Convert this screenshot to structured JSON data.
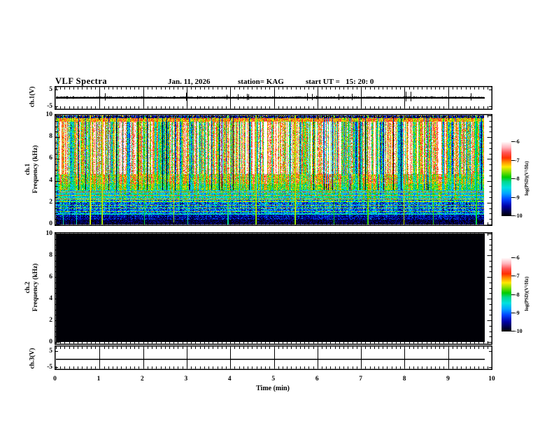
{
  "header": {
    "title": "VLF Spectra",
    "date": "Jan. 11, 2026",
    "station": "station= KAG",
    "start_ut": "start UT =   15: 20: 0"
  },
  "axes": {
    "time_label": "Time (min)",
    "x_tick_labels": [
      "0",
      "1",
      "2",
      "3",
      "4",
      "5",
      "6",
      "7",
      "8",
      "9",
      "10"
    ],
    "ch1_voltage": {
      "label": "ch.1(V)",
      "y_tick_labels": [
        "5",
        "-5"
      ]
    },
    "ch1_spectrogram": {
      "label_line1": "ch.1",
      "label_line2": "Frequency (kHz)",
      "y_tick_labels": [
        "10",
        "8",
        "6",
        "4",
        "2",
        "0"
      ]
    },
    "ch2_spectrogram": {
      "label_line1": "ch.2",
      "label_line2": "Frequency (kHz)",
      "y_tick_labels": [
        "10",
        "8",
        "6",
        "4",
        "2",
        "0"
      ]
    },
    "ch3_voltage": {
      "label": "ch.3(V)",
      "y_tick_labels": [
        "5",
        "-5"
      ]
    }
  },
  "colorbar": {
    "label": "log(PSD)(V²/Hz)",
    "tick_labels": [
      "-6",
      "-7",
      "-8",
      "-9",
      "-10"
    ],
    "value_range": [
      -10,
      -6
    ]
  },
  "colors": {
    "background": "#ffffff",
    "frame": "#000000",
    "colormap_stops": [
      [
        0.0,
        "#000006"
      ],
      [
        0.05,
        "#000042"
      ],
      [
        0.13,
        "#0000a8"
      ],
      [
        0.22,
        "#0044ff"
      ],
      [
        0.3,
        "#00a4ff"
      ],
      [
        0.38,
        "#00e0e0"
      ],
      [
        0.46,
        "#00d890"
      ],
      [
        0.52,
        "#00cc00"
      ],
      [
        0.6,
        "#96e000"
      ],
      [
        0.66,
        "#ffe800"
      ],
      [
        0.72,
        "#ff9400"
      ],
      [
        0.78,
        "#ff3000"
      ],
      [
        0.85,
        "#ff5454"
      ],
      [
        0.92,
        "#ffb4bc"
      ],
      [
        1.0,
        "#ffffff"
      ]
    ]
  },
  "chart_data": [
    {
      "id": "ch1_waveform",
      "type": "line",
      "ylabel": "ch.1(V)",
      "yticks": [
        5,
        -5
      ],
      "ylim_V": [
        -7,
        7
      ],
      "x_range_min": [
        0,
        10
      ],
      "data_end_min": 9.82,
      "grid": "vertical line each minute",
      "description": "broadband noise centered on 0 V, ~±0.5 V, frequent upward spikes to ~2 V, largest spike near 8.0 min",
      "noise_seed": 511,
      "spike_prob": 0.025,
      "big_spike_min": 8.02
    },
    {
      "id": "ch1_spectrogram",
      "type": "heatmap",
      "ylabel": "Frequency (kHz)",
      "ylim_kHz": [
        0,
        10
      ],
      "yticks": [
        0,
        2,
        4,
        6,
        8,
        10
      ],
      "x_range_min": [
        0,
        10
      ],
      "data_end_min": 9.82,
      "value_units": "log(PSD)(V²/Hz)",
      "value_range": [
        -10,
        -6
      ],
      "seeds": {
        "columns": 91131,
        "rows": 4477,
        "pixels": 2025
      },
      "bands": [
        {
          "f_kHz": [
            9.78,
            10.0
          ],
          "base": -9.55,
          "col_w": 0.0,
          "noise_w": 0.35,
          "speckle": true,
          "note": "dark top edge with red speckle"
        },
        {
          "f_kHz": [
            9.45,
            9.78
          ],
          "base": -7.15,
          "col_w": 0.3,
          "noise_w": 0.3,
          "note": "solid red band"
        },
        {
          "f_kHz": [
            4.6,
            9.45
          ],
          "base": -7.0,
          "col_w": 1.15,
          "noise_w": 0.45,
          "env": true,
          "note": "intense hiss: red with saturated white vertical stripes and narrow green gaps"
        },
        {
          "f_kHz": [
            3.7,
            4.6
          ],
          "base": -7.45,
          "col_w": 0.6,
          "noise_w": 0.45,
          "note": "red-orange-yellow mix"
        },
        {
          "f_kHz": [
            3.1,
            3.7
          ],
          "base": -7.8,
          "col_w": 0.45,
          "noise_w": 0.4,
          "note": "yellow-green transition"
        },
        {
          "f_kHz": [
            2.2,
            3.1
          ],
          "base": -8.35,
          "col_w": 0.3,
          "noise_w": 0.35,
          "rows": true,
          "row_w": 1.0,
          "note": "green-cyan speckle"
        },
        {
          "f_kHz": [
            1.0,
            2.2
          ],
          "base": -9.0,
          "col_w": 0.2,
          "noise_w": 0.45,
          "rows": true,
          "row_w": 1.0,
          "note": "blue with bright cyan horizontal lines"
        },
        {
          "f_kHz": [
            0.4,
            1.0
          ],
          "base": -9.45,
          "col_w": 0.1,
          "noise_w": 0.35,
          "rows": true,
          "row_w": 0.7,
          "note": "dark blue"
        },
        {
          "f_kHz": [
            0.0,
            0.4
          ],
          "base": -9.8,
          "col_w": 0.0,
          "noise_w": 0.25,
          "note": "near black floor"
        }
      ],
      "horizontal_lines_kHz": [
        0.98,
        1.17,
        1.5,
        1.73,
        2.08,
        2.32,
        2.62
      ],
      "impulses": "full-height green impulse columns every ~15-60 px, level ≈ -8.3 to -7.5"
    },
    {
      "id": "ch2_spectrogram",
      "type": "heatmap",
      "ylabel": "Frequency (kHz)",
      "ylim_kHz": [
        0,
        10
      ],
      "yticks": [
        0,
        2,
        4,
        6,
        8,
        10
      ],
      "x_range_min": [
        0,
        10
      ],
      "data_end_min": 9.82,
      "description": "no signal - uniform level at/below -10 (solid black panel)",
      "uniform_value": -10
    },
    {
      "id": "ch3_waveform",
      "type": "line",
      "ylabel": "ch.3(V)",
      "yticks": [
        5,
        -5
      ],
      "ylim_V": [
        -7,
        7
      ],
      "x_range_min": [
        0,
        10
      ],
      "data_end_min": 9.82,
      "description": "constant flat line at 0 V",
      "value_V": 0
    }
  ]
}
